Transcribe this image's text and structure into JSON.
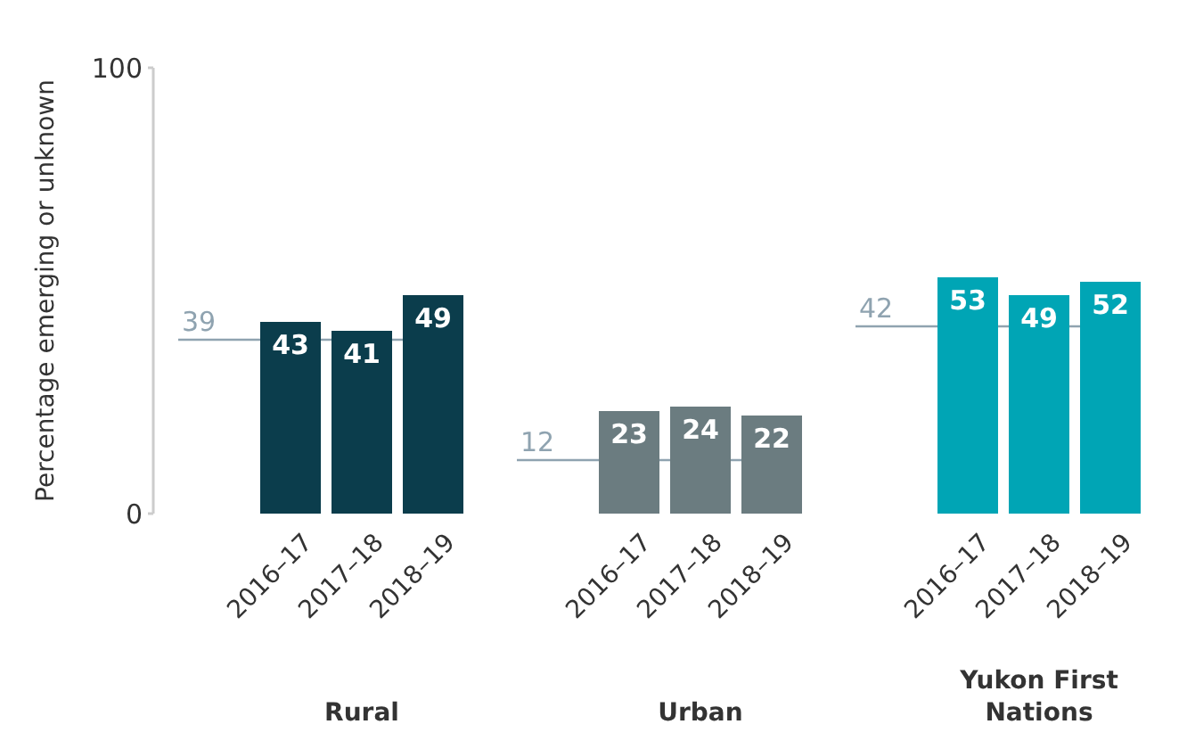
{
  "chart_data": [
    {
      "type": "bar",
      "ylabel": "Percentage emerging or unknown",
      "xlabel": "Rural",
      "categories": [
        "2016–17",
        "2017–18",
        "2018–19"
      ],
      "values": [
        43,
        41,
        49
      ],
      "color": "#0b3d4c",
      "ylim": [
        0,
        100
      ],
      "yticks": [
        0,
        100
      ],
      "data_labels": true,
      "ref_lines": [
        {
          "axis": "y",
          "value": 39,
          "label": "39",
          "color": "#8fa3b0"
        }
      ]
    },
    {
      "type": "bar",
      "xlabel": "Urban",
      "categories": [
        "2016–17",
        "2017–18",
        "2018–19"
      ],
      "values": [
        23,
        24,
        22
      ],
      "color": "#6b7c80",
      "ylim": [
        0,
        100
      ],
      "tick_labels": "x",
      "data_labels": true,
      "ref_lines": [
        {
          "axis": "y",
          "value": 12,
          "label": "12",
          "color": "#8fa3b0"
        }
      ]
    },
    {
      "type": "bar",
      "xlabel": "Yukon First Nations",
      "categories": [
        "2016–17",
        "2017–18",
        "2018–19"
      ],
      "values": [
        53,
        49,
        52
      ],
      "color": "#00a5b5",
      "ylim": [
        0,
        100
      ],
      "tick_labels": "x",
      "data_labels": true,
      "ref_lines": [
        {
          "axis": "y",
          "value": 42,
          "label": "42",
          "color": "#8fa3b0"
        }
      ]
    }
  ]
}
